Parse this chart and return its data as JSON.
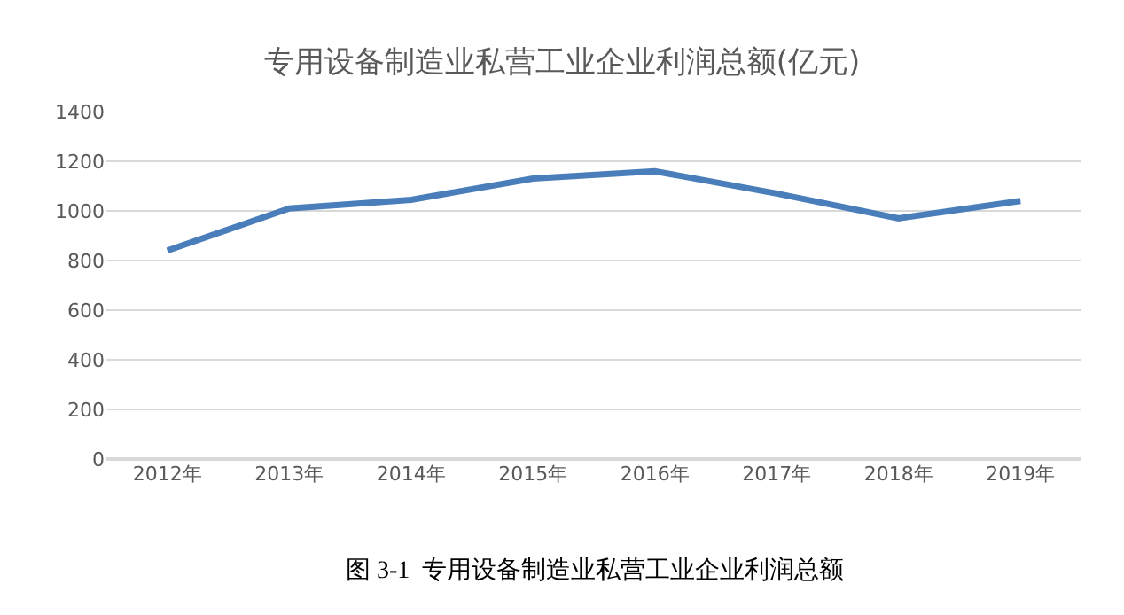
{
  "chart_data": {
    "type": "line",
    "title": "专用设备制造业私营工业企业利润总额(亿元)",
    "categories": [
      "2012年",
      "2013年",
      "2014年",
      "2015年",
      "2016年",
      "2017年",
      "2018年",
      "2019年"
    ],
    "series": [
      {
        "color": "#4a7ebb",
        "values": [
          840,
          1010,
          1045,
          1130,
          1160,
          1070,
          970,
          1040
        ]
      }
    ],
    "ylim": [
      0,
      1400
    ],
    "yticks": [
      0,
      200,
      400,
      600,
      800,
      1000,
      1200,
      1400
    ],
    "grid": "y",
    "marker": "none",
    "line_style": "solid",
    "annotations": [
      "图 3-1  专用设备制造业私营工业企业利润总额"
    ]
  }
}
